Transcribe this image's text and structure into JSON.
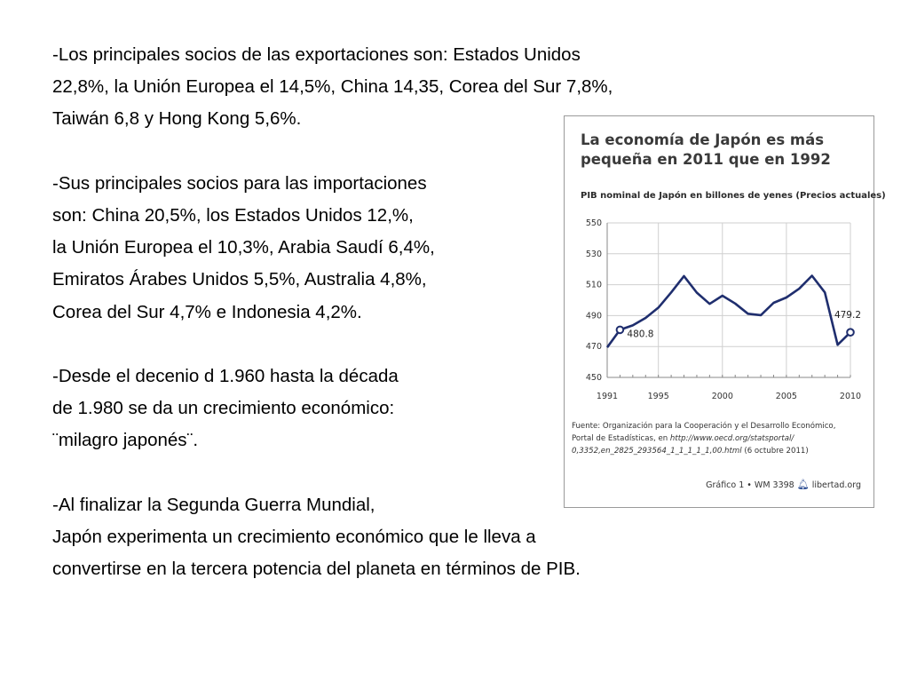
{
  "body_text": {
    "exports_l1": "-Los principales socios de las exportaciones son: Estados Unidos",
    "exports_l2": "22,8%, la Unión Europea el 14,5%, China 14,35, Corea del Sur 7,8%,",
    "exports_l3": "Taiwán 6,8 y Hong Kong 5,6%.",
    "imports_l1": "-Sus principales socios para las importaciones",
    "imports_l2": "son: China 20,5%, los Estados Unidos 12,%,",
    "imports_l3": "la Unión Europea el 10,3%, Arabia Saudí 6,4%,",
    "imports_l4": "Emiratos Árabes Unidos 5,5%, Australia 4,8%,",
    "imports_l5": "Corea del Sur 4,7% e Indonesia 4,2%.",
    "growth_l1": "-Desde el decenio d 1.960 hasta la década",
    "growth_l2": "de 1.980 se da un crecimiento económico:",
    "growth_l3": "¨milagro japonés¨.",
    "war_l1": "-Al finalizar la Segunda Guerra Mundial,",
    "war_l2": "Japón experimenta un crecimiento económico que le lleva a",
    "war_l3": "convertirse en la tercera potencia del planeta en términos de PIB."
  },
  "figure": {
    "title_l1": "La economía de Japón es más",
    "title_l2": "pequeña en 2011 que en 1992",
    "source_l1": "Fuente: Organización para la Cooperación y el Desarrollo Económico,",
    "source_l2_prefix": "Portal de Estadísticas, en ",
    "source_url_1": "http://www.oecd.org/statsportal/",
    "source_url_2": "0,3352,en_2825_293564_1_1_1_1_1,00.html",
    "source_date": " (6 octubre 2011)",
    "credit_text": "Gráfico 1 • WM 3398",
    "credit_brand": "libertad.org",
    "bell_icon": "bell-icon",
    "line_color": "#1f2e6e"
  },
  "chart_data": {
    "type": "line",
    "title": "PIB nominal de Japón en billones de yenes (Precios actuales)",
    "x_ticks": [
      "1991",
      "1995",
      "2000",
      "2005",
      "2010"
    ],
    "y_ticks": [
      "550",
      "530",
      "510",
      "490",
      "470",
      "450"
    ],
    "ylim": [
      450,
      550
    ],
    "xlim": [
      1991,
      2010
    ],
    "grid": true,
    "x": [
      1991,
      1992,
      1993,
      1994,
      1995,
      1996,
      1997,
      1998,
      1999,
      2000,
      2001,
      2002,
      2003,
      2004,
      2005,
      2006,
      2007,
      2008,
      2009,
      2010
    ],
    "values": [
      469.4,
      480.8,
      483.7,
      488.5,
      495.2,
      505.0,
      515.6,
      504.9,
      497.6,
      502.9,
      497.8,
      491.2,
      490.3,
      498.3,
      501.7,
      507.4,
      515.8,
      505.0,
      471.1,
      479.2
    ],
    "annotations": [
      {
        "x": 1992,
        "y": 480.8,
        "label": "480.8"
      },
      {
        "x": 2010,
        "y": 479.2,
        "label": "479.2"
      }
    ]
  }
}
